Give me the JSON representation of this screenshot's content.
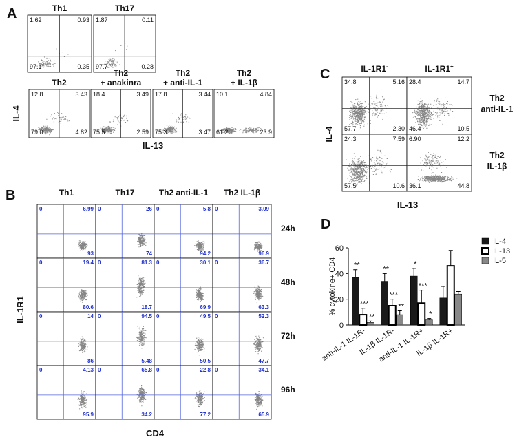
{
  "panel_a": {
    "label": "A",
    "y_label": "IL-4",
    "x_label": "IL-13",
    "plots": [
      {
        "title_lines": [
          "Th1"
        ],
        "quadrants": [
          "1.62",
          "0.93",
          "97.1",
          "0.35"
        ]
      },
      {
        "title_lines": [
          "Th17"
        ],
        "quadrants": [
          "1.87",
          "0.11",
          "97.7",
          "0.28"
        ]
      },
      {
        "title_lines": [
          "Th2"
        ],
        "quadrants": [
          "12.8",
          "3.43",
          "79.0",
          "4.82"
        ]
      },
      {
        "title_lines": [
          "Th2",
          "+ anakinra"
        ],
        "quadrants": [
          "18.4",
          "3.49",
          "75.5",
          "2.59"
        ]
      },
      {
        "title_lines": [
          "Th2",
          "+ anti-IL-1"
        ],
        "quadrants": [
          "17.8",
          "3.44",
          "75.3",
          "3.47"
        ]
      },
      {
        "title_lines": [
          "Th2",
          "+ IL-1β"
        ],
        "quadrants": [
          "10.1",
          "4.84",
          "61.2",
          "23.9"
        ]
      }
    ]
  },
  "panel_b": {
    "label": "B",
    "y_label": "IL-1R1",
    "x_label": "CD4",
    "columns": [
      "Th1",
      "Th17",
      "Th2 anti-IL-1",
      "Th2 IL-1β"
    ],
    "rows": [
      {
        "time": "24h",
        "plots": [
          [
            "0",
            "6.99",
            "93"
          ],
          [
            "0",
            "26",
            "74"
          ],
          [
            "0",
            "5.8",
            "94.2"
          ],
          [
            "0",
            "3.09",
            "96.9"
          ]
        ]
      },
      {
        "time": "48h",
        "plots": [
          [
            "0",
            "19.4",
            "80.6"
          ],
          [
            "0",
            "81.3",
            "18.7"
          ],
          [
            "0",
            "30.1",
            "69.9"
          ],
          [
            "0",
            "36.7",
            "63.3"
          ]
        ]
      },
      {
        "time": "72h",
        "plots": [
          [
            "0",
            "14",
            "86"
          ],
          [
            "0",
            "94.5",
            "5.48"
          ],
          [
            "0",
            "49.5",
            "50.5"
          ],
          [
            "0",
            "52.3",
            "47.7"
          ]
        ]
      },
      {
        "time": "96h",
        "plots": [
          [
            "0",
            "4.13",
            "95.9"
          ],
          [
            "0",
            "65.8",
            "34.2"
          ],
          [
            "0",
            "22.8",
            "77.2"
          ],
          [
            "0",
            "34.1",
            "65.9"
          ]
        ]
      }
    ]
  },
  "panel_c": {
    "label": "C",
    "y_label": "IL-4",
    "x_label": "IL-13",
    "columns": [
      {
        "base": "IL-1R1",
        "sup": "-"
      },
      {
        "base": "IL-1R1",
        "sup": "+"
      }
    ],
    "rows": [
      {
        "lines": [
          "Th2",
          "anti-IL-1"
        ],
        "plots": [
          [
            "34.8",
            "5.16",
            "57.7",
            "2.30"
          ],
          [
            "28.4",
            "14.7",
            "46.4",
            "10.5"
          ]
        ]
      },
      {
        "lines": [
          "Th2",
          "IL-1β"
        ],
        "plots": [
          [
            "24.3",
            "7.59",
            "57.5",
            "10.6"
          ],
          [
            "6.90",
            "12.2",
            "36.1",
            "44.8"
          ]
        ]
      }
    ]
  },
  "chart_data": {
    "type": "bar",
    "panel_label": "D",
    "y_label": "% cytokine+ CD4",
    "categories": [
      "anti-IL-1 IL-1R-",
      "IL-1β IL-1R-",
      "anti-IL-1 IL-1R+",
      "IL-1β IL-1R+"
    ],
    "series": [
      {
        "name": "IL-4",
        "color": "#1a1a1a",
        "values": [
          37,
          34,
          38,
          21
        ],
        "errors": [
          6,
          6,
          6,
          9
        ],
        "significance": [
          "**",
          "**",
          "*",
          null
        ]
      },
      {
        "name": "IL-13",
        "color": "#ffffff",
        "values": [
          8,
          15,
          17,
          46
        ],
        "errors": [
          5,
          5,
          10,
          12
        ],
        "significance": [
          "***",
          "***",
          "***",
          null
        ]
      },
      {
        "name": "IL-5",
        "color": "#888888",
        "values": [
          2,
          8,
          4,
          24
        ],
        "errors": [
          1,
          3,
          1,
          2
        ],
        "significance": [
          "**",
          "**",
          "*",
          null
        ]
      }
    ],
    "ylim": [
      0,
      60
    ],
    "yticks": [
      0,
      20,
      40,
      60
    ]
  }
}
